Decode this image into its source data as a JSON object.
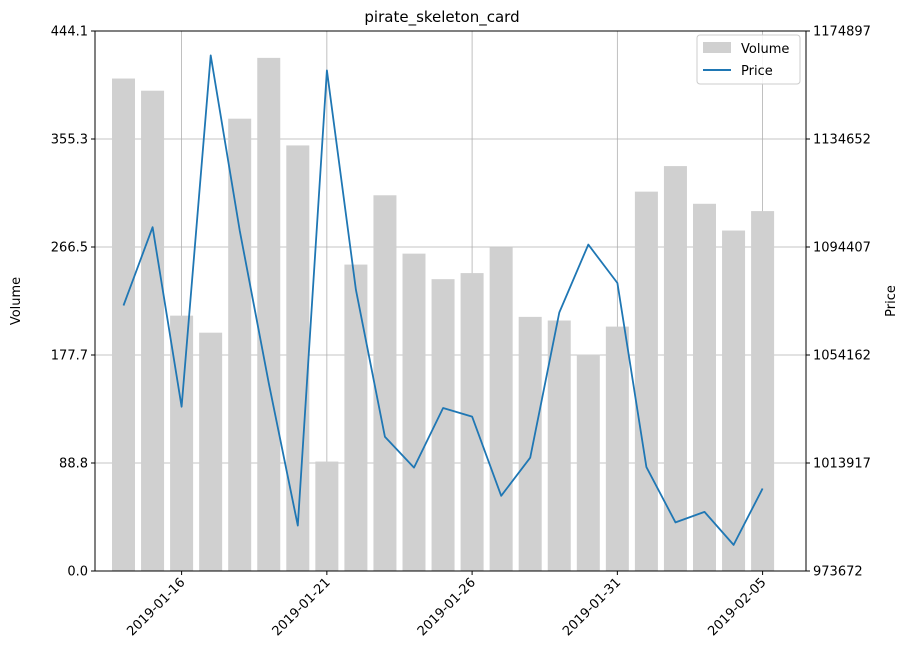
{
  "chart_data": {
    "type": "bar",
    "title": "pirate_skeleton_card",
    "x": [
      "2019-01-14",
      "2019-01-15",
      "2019-01-16",
      "2019-01-17",
      "2019-01-18",
      "2019-01-19",
      "2019-01-20",
      "2019-01-21",
      "2019-01-22",
      "2019-01-23",
      "2019-01-24",
      "2019-01-25",
      "2019-01-26",
      "2019-01-27",
      "2019-01-28",
      "2019-01-29",
      "2019-01-30",
      "2019-01-31",
      "2019-02-01",
      "2019-02-02",
      "2019-02-03",
      "2019-02-04",
      "2019-02-05"
    ],
    "x_ticks": [
      "2019-01-16",
      "2019-01-21",
      "2019-01-26",
      "2019-01-31",
      "2019-02-05"
    ],
    "series": [
      {
        "name": "Volume",
        "kind": "bar",
        "axis": "left",
        "color": "#d0d0d0",
        "values": [
          405,
          395,
          210,
          196,
          372,
          422,
          350,
          90,
          252,
          309,
          261,
          240,
          245,
          266,
          209,
          206,
          178,
          201,
          312,
          333,
          302,
          280,
          296
        ]
      },
      {
        "name": "Price",
        "kind": "line",
        "axis": "right",
        "color": "#1f77b4",
        "values": [
          1072600,
          1101800,
          1034900,
          1165800,
          1100600,
          1043600,
          990600,
          1160200,
          1078500,
          1023700,
          1012200,
          1034400,
          1031200,
          1001700,
          1015900,
          1070000,
          1095300,
          1081000,
          1012400,
          991800,
          995700,
          983400,
          1004400
        ]
      }
    ],
    "ylabel": "Volume",
    "ylabel_right": "Price",
    "ylim": [
      0,
      444.1
    ],
    "ylim_right": [
      973672,
      1174897
    ],
    "yticks": [
      "0.0",
      "88.8",
      "177.7",
      "266.5",
      "355.3",
      "444.1"
    ],
    "yticks_right": [
      "973672",
      "1013917",
      "1054162",
      "1094407",
      "1134652",
      "1174897"
    ],
    "grid": true,
    "legend": "top-right"
  }
}
